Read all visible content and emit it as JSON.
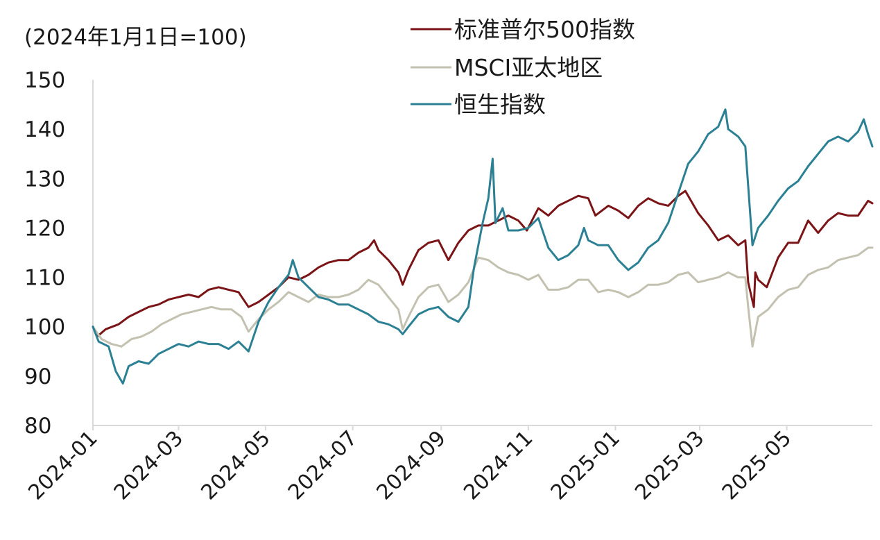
{
  "chart_data": {
    "type": "line",
    "unit_label": "(2024年1月1日=100)",
    "ylim": [
      80,
      150
    ],
    "yticks": [
      80,
      90,
      100,
      110,
      120,
      130,
      140,
      150
    ],
    "xlim": [
      "2024-01-01",
      "2025-06-30"
    ],
    "xticks": [
      {
        "date": "2024-01-01",
        "label": "2024-01"
      },
      {
        "date": "2024-03-01",
        "label": "2024-03"
      },
      {
        "date": "2024-05-01",
        "label": "2024-05"
      },
      {
        "date": "2024-07-01",
        "label": "2024-07"
      },
      {
        "date": "2024-09-01",
        "label": "2024-09"
      },
      {
        "date": "2024-11-01",
        "label": "2024-11"
      },
      {
        "date": "2025-01-01",
        "label": "2025-01"
      },
      {
        "date": "2025-03-01",
        "label": "2025-03"
      },
      {
        "date": "2025-05-01",
        "label": "2025-05"
      }
    ],
    "grid": false,
    "legend_position": "top-right",
    "series": [
      {
        "name": "标准普尔500指数",
        "color": "#7b1416",
        "points": [
          [
            "2024-01-01",
            100
          ],
          [
            "2024-01-04",
            98
          ],
          [
            "2024-01-10",
            99.5
          ],
          [
            "2024-01-19",
            100.5
          ],
          [
            "2024-01-26",
            102
          ],
          [
            "2024-02-02",
            103
          ],
          [
            "2024-02-09",
            104
          ],
          [
            "2024-02-16",
            104.5
          ],
          [
            "2024-02-23",
            105.5
          ],
          [
            "2024-03-01",
            106
          ],
          [
            "2024-03-08",
            106.5
          ],
          [
            "2024-03-15",
            106
          ],
          [
            "2024-03-22",
            107.5
          ],
          [
            "2024-03-29",
            108
          ],
          [
            "2024-04-05",
            107.5
          ],
          [
            "2024-04-12",
            107
          ],
          [
            "2024-04-19",
            104
          ],
          [
            "2024-04-26",
            105
          ],
          [
            "2024-05-03",
            106.5
          ],
          [
            "2024-05-10",
            108
          ],
          [
            "2024-05-17",
            110
          ],
          [
            "2024-05-24",
            109.5
          ],
          [
            "2024-05-31",
            110.5
          ],
          [
            "2024-06-07",
            112
          ],
          [
            "2024-06-14",
            113
          ],
          [
            "2024-06-21",
            113.5
          ],
          [
            "2024-06-28",
            113.5
          ],
          [
            "2024-07-05",
            115
          ],
          [
            "2024-07-12",
            116
          ],
          [
            "2024-07-16",
            117.5
          ],
          [
            "2024-07-19",
            115.5
          ],
          [
            "2024-07-26",
            113.5
          ],
          [
            "2024-08-02",
            111
          ],
          [
            "2024-08-05",
            108.5
          ],
          [
            "2024-08-09",
            111.5
          ],
          [
            "2024-08-16",
            115.5
          ],
          [
            "2024-08-23",
            117
          ],
          [
            "2024-08-30",
            117.5
          ],
          [
            "2024-09-06",
            113.5
          ],
          [
            "2024-09-13",
            117
          ],
          [
            "2024-09-20",
            119.5
          ],
          [
            "2024-09-27",
            120.5
          ],
          [
            "2024-10-04",
            120.5
          ],
          [
            "2024-10-11",
            121.5
          ],
          [
            "2024-10-18",
            122.5
          ],
          [
            "2024-10-25",
            121.5
          ],
          [
            "2024-10-31",
            119.5
          ],
          [
            "2024-11-08",
            124
          ],
          [
            "2024-11-15",
            122.5
          ],
          [
            "2024-11-22",
            124.5
          ],
          [
            "2024-11-29",
            125.5
          ],
          [
            "2024-12-06",
            126.5
          ],
          [
            "2024-12-13",
            126
          ],
          [
            "2024-12-18",
            122.5
          ],
          [
            "2024-12-27",
            124.5
          ],
          [
            "2025-01-03",
            123.5
          ],
          [
            "2025-01-10",
            122
          ],
          [
            "2025-01-17",
            124.5
          ],
          [
            "2025-01-24",
            126
          ],
          [
            "2025-01-31",
            125
          ],
          [
            "2025-02-07",
            124.5
          ],
          [
            "2025-02-14",
            126.5
          ],
          [
            "2025-02-19",
            127.5
          ],
          [
            "2025-02-28",
            123
          ],
          [
            "2025-03-07",
            120.5
          ],
          [
            "2025-03-14",
            117.5
          ],
          [
            "2025-03-21",
            118.5
          ],
          [
            "2025-03-28",
            116.5
          ],
          [
            "2025-04-02",
            117.5
          ],
          [
            "2025-04-04",
            109
          ],
          [
            "2025-04-08",
            104
          ],
          [
            "2025-04-09",
            111
          ],
          [
            "2025-04-11",
            109.5
          ],
          [
            "2025-04-17",
            108
          ],
          [
            "2025-04-25",
            114
          ],
          [
            "2025-05-02",
            117
          ],
          [
            "2025-05-09",
            117
          ],
          [
            "2025-05-16",
            121.5
          ],
          [
            "2025-05-23",
            119
          ],
          [
            "2025-05-30",
            121.5
          ],
          [
            "2025-06-06",
            123
          ],
          [
            "2025-06-13",
            122.5
          ],
          [
            "2025-06-20",
            122.5
          ],
          [
            "2025-06-27",
            125.5
          ],
          [
            "2025-06-30",
            125
          ]
        ]
      },
      {
        "name": "MSCI亚太地区",
        "color": "#c3c1b0",
        "points": [
          [
            "2024-01-01",
            100
          ],
          [
            "2024-01-07",
            97.5
          ],
          [
            "2024-01-14",
            96.5
          ],
          [
            "2024-01-21",
            96
          ],
          [
            "2024-01-28",
            97.5
          ],
          [
            "2024-02-04",
            98
          ],
          [
            "2024-02-11",
            99
          ],
          [
            "2024-02-18",
            100.5
          ],
          [
            "2024-02-25",
            101.5
          ],
          [
            "2024-03-03",
            102.5
          ],
          [
            "2024-03-10",
            103
          ],
          [
            "2024-03-17",
            103.5
          ],
          [
            "2024-03-24",
            104
          ],
          [
            "2024-03-31",
            103.5
          ],
          [
            "2024-04-07",
            103.5
          ],
          [
            "2024-04-14",
            102
          ],
          [
            "2024-04-19",
            99
          ],
          [
            "2024-04-26",
            101.5
          ],
          [
            "2024-05-03",
            103.5
          ],
          [
            "2024-05-10",
            105
          ],
          [
            "2024-05-17",
            107
          ],
          [
            "2024-05-24",
            106
          ],
          [
            "2024-05-31",
            105
          ],
          [
            "2024-06-07",
            106.5
          ],
          [
            "2024-06-14",
            106
          ],
          [
            "2024-06-21",
            106
          ],
          [
            "2024-06-28",
            106.5
          ],
          [
            "2024-07-05",
            107.5
          ],
          [
            "2024-07-12",
            109.5
          ],
          [
            "2024-07-19",
            108.5
          ],
          [
            "2024-07-26",
            106
          ],
          [
            "2024-08-02",
            103.5
          ],
          [
            "2024-08-05",
            99.5
          ],
          [
            "2024-08-09",
            102
          ],
          [
            "2024-08-16",
            106
          ],
          [
            "2024-08-23",
            108
          ],
          [
            "2024-08-30",
            108.5
          ],
          [
            "2024-09-06",
            105
          ],
          [
            "2024-09-13",
            106.5
          ],
          [
            "2024-09-20",
            109
          ],
          [
            "2024-09-27",
            114
          ],
          [
            "2024-10-04",
            113.5
          ],
          [
            "2024-10-11",
            112
          ],
          [
            "2024-10-18",
            111
          ],
          [
            "2024-10-25",
            110.5
          ],
          [
            "2024-11-01",
            109.5
          ],
          [
            "2024-11-08",
            110.5
          ],
          [
            "2024-11-15",
            107.5
          ],
          [
            "2024-11-22",
            107.5
          ],
          [
            "2024-11-29",
            108
          ],
          [
            "2024-12-06",
            109.5
          ],
          [
            "2024-12-13",
            109.5
          ],
          [
            "2024-12-20",
            107
          ],
          [
            "2024-12-27",
            107.5
          ],
          [
            "2025-01-03",
            107
          ],
          [
            "2025-01-10",
            106
          ],
          [
            "2025-01-17",
            107
          ],
          [
            "2025-01-24",
            108.5
          ],
          [
            "2025-01-31",
            108.5
          ],
          [
            "2025-02-07",
            109
          ],
          [
            "2025-02-14",
            110.5
          ],
          [
            "2025-02-21",
            111
          ],
          [
            "2025-02-28",
            109
          ],
          [
            "2025-03-07",
            109.5
          ],
          [
            "2025-03-14",
            110
          ],
          [
            "2025-03-21",
            111
          ],
          [
            "2025-03-28",
            110
          ],
          [
            "2025-04-02",
            110
          ],
          [
            "2025-04-04",
            104
          ],
          [
            "2025-04-07",
            96
          ],
          [
            "2025-04-09",
            99
          ],
          [
            "2025-04-11",
            102
          ],
          [
            "2025-04-18",
            103.5
          ],
          [
            "2025-04-25",
            106
          ],
          [
            "2025-05-02",
            107.5
          ],
          [
            "2025-05-09",
            108
          ],
          [
            "2025-05-16",
            110.5
          ],
          [
            "2025-05-23",
            111.5
          ],
          [
            "2025-05-30",
            112
          ],
          [
            "2025-06-06",
            113.5
          ],
          [
            "2025-06-13",
            114
          ],
          [
            "2025-06-20",
            114.5
          ],
          [
            "2025-06-27",
            116
          ],
          [
            "2025-06-30",
            116
          ]
        ]
      },
      {
        "name": "恒生指数",
        "color": "#2c8094",
        "points": [
          [
            "2024-01-01",
            100
          ],
          [
            "2024-01-05",
            97
          ],
          [
            "2024-01-12",
            96
          ],
          [
            "2024-01-17",
            91
          ],
          [
            "2024-01-22",
            88.5
          ],
          [
            "2024-01-26",
            92
          ],
          [
            "2024-02-02",
            93
          ],
          [
            "2024-02-09",
            92.5
          ],
          [
            "2024-02-16",
            94.5
          ],
          [
            "2024-02-23",
            95.5
          ],
          [
            "2024-03-01",
            96.5
          ],
          [
            "2024-03-08",
            96
          ],
          [
            "2024-03-15",
            97
          ],
          [
            "2024-03-22",
            96.5
          ],
          [
            "2024-03-29",
            96.5
          ],
          [
            "2024-04-05",
            95.5
          ],
          [
            "2024-04-12",
            97
          ],
          [
            "2024-04-19",
            95
          ],
          [
            "2024-04-26",
            101
          ],
          [
            "2024-05-03",
            105
          ],
          [
            "2024-05-10",
            108
          ],
          [
            "2024-05-17",
            110.5
          ],
          [
            "2024-05-20",
            113.5
          ],
          [
            "2024-05-24",
            110
          ],
          [
            "2024-05-31",
            108
          ],
          [
            "2024-06-07",
            106
          ],
          [
            "2024-06-14",
            105.5
          ],
          [
            "2024-06-21",
            104.5
          ],
          [
            "2024-06-28",
            104.5
          ],
          [
            "2024-07-05",
            103.5
          ],
          [
            "2024-07-12",
            102.5
          ],
          [
            "2024-07-19",
            101
          ],
          [
            "2024-07-26",
            100.5
          ],
          [
            "2024-08-02",
            99.5
          ],
          [
            "2024-08-05",
            98.5
          ],
          [
            "2024-08-09",
            100
          ],
          [
            "2024-08-16",
            102.5
          ],
          [
            "2024-08-23",
            103.5
          ],
          [
            "2024-08-30",
            104
          ],
          [
            "2024-09-06",
            102
          ],
          [
            "2024-09-13",
            101
          ],
          [
            "2024-09-20",
            104
          ],
          [
            "2024-09-24",
            112
          ],
          [
            "2024-09-30",
            121
          ],
          [
            "2024-10-04",
            126
          ],
          [
            "2024-10-07",
            134
          ],
          [
            "2024-10-09",
            121
          ],
          [
            "2024-10-14",
            124
          ],
          [
            "2024-10-18",
            119.5
          ],
          [
            "2024-10-25",
            119.5
          ],
          [
            "2024-11-01",
            120
          ],
          [
            "2024-11-08",
            122
          ],
          [
            "2024-11-15",
            116
          ],
          [
            "2024-11-22",
            113.5
          ],
          [
            "2024-11-29",
            114.5
          ],
          [
            "2024-12-06",
            116.5
          ],
          [
            "2024-12-10",
            120
          ],
          [
            "2024-12-13",
            117.5
          ],
          [
            "2024-12-20",
            116.5
          ],
          [
            "2024-12-27",
            116.5
          ],
          [
            "2025-01-03",
            113.5
          ],
          [
            "2025-01-10",
            111.5
          ],
          [
            "2025-01-17",
            113
          ],
          [
            "2025-01-24",
            116
          ],
          [
            "2025-01-31",
            117.5
          ],
          [
            "2025-02-07",
            121
          ],
          [
            "2025-02-14",
            127
          ],
          [
            "2025-02-21",
            133
          ],
          [
            "2025-02-28",
            135.5
          ],
          [
            "2025-03-07",
            139
          ],
          [
            "2025-03-14",
            140.5
          ],
          [
            "2025-03-19",
            144
          ],
          [
            "2025-03-21",
            140
          ],
          [
            "2025-03-28",
            138.5
          ],
          [
            "2025-04-02",
            136.5
          ],
          [
            "2025-04-07",
            116.5
          ],
          [
            "2025-04-11",
            120
          ],
          [
            "2025-04-18",
            122.5
          ],
          [
            "2025-04-25",
            125.5
          ],
          [
            "2025-05-02",
            128
          ],
          [
            "2025-05-09",
            129.5
          ],
          [
            "2025-05-16",
            132.5
          ],
          [
            "2025-05-23",
            135
          ],
          [
            "2025-05-30",
            137.5
          ],
          [
            "2025-06-06",
            138.5
          ],
          [
            "2025-06-13",
            137.5
          ],
          [
            "2025-06-20",
            139.5
          ],
          [
            "2025-06-24",
            142
          ],
          [
            "2025-06-27",
            139
          ],
          [
            "2025-06-30",
            136.5
          ]
        ]
      }
    ]
  }
}
